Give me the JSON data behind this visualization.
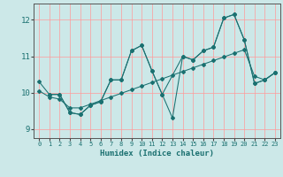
{
  "xlabel": "Humidex (Indice chaleur)",
  "bg_color": "#cce8e8",
  "grid_color": "#ff9999",
  "line_color": "#1a7070",
  "xlim": [
    -0.5,
    23.5
  ],
  "ylim": [
    8.75,
    12.45
  ],
  "yticks": [
    9,
    10,
    11,
    12
  ],
  "xticks": [
    0,
    1,
    2,
    3,
    4,
    5,
    6,
    7,
    8,
    9,
    10,
    11,
    12,
    13,
    14,
    15,
    16,
    17,
    18,
    19,
    20,
    21,
    22,
    23
  ],
  "line1_x": [
    0,
    1,
    2,
    3,
    4,
    5,
    6,
    7,
    8,
    9,
    10,
    11,
    12,
    13,
    14,
    15,
    16,
    17,
    18,
    19,
    20,
    21,
    22,
    23
  ],
  "line1_y": [
    10.3,
    9.95,
    9.95,
    9.45,
    9.4,
    9.65,
    9.75,
    10.35,
    10.35,
    11.15,
    11.3,
    10.6,
    9.95,
    9.3,
    11.0,
    10.9,
    11.15,
    11.25,
    12.05,
    12.15,
    11.45,
    10.25,
    10.35,
    10.55
  ],
  "line2_x": [
    1,
    2,
    3,
    4,
    5,
    6,
    7,
    8,
    9,
    10,
    11,
    12,
    14,
    15,
    16,
    17,
    18,
    19,
    20,
    21,
    22,
    23
  ],
  "line2_y": [
    9.95,
    9.95,
    9.45,
    9.4,
    9.65,
    9.75,
    10.35,
    10.35,
    11.15,
    11.3,
    10.6,
    9.95,
    11.0,
    10.9,
    11.15,
    11.25,
    12.05,
    12.15,
    11.45,
    10.25,
    10.35,
    10.55
  ],
  "line3_x": [
    0,
    1,
    2,
    3,
    4,
    5,
    6,
    7,
    8,
    9,
    10,
    11,
    12,
    13,
    14,
    15,
    16,
    17,
    18,
    19,
    20,
    21,
    22,
    23
  ],
  "line3_y": [
    10.05,
    9.88,
    9.82,
    9.58,
    9.58,
    9.68,
    9.78,
    9.88,
    9.98,
    10.08,
    10.18,
    10.28,
    10.38,
    10.48,
    10.58,
    10.68,
    10.78,
    10.88,
    10.98,
    11.08,
    11.18,
    10.45,
    10.35,
    10.55
  ]
}
